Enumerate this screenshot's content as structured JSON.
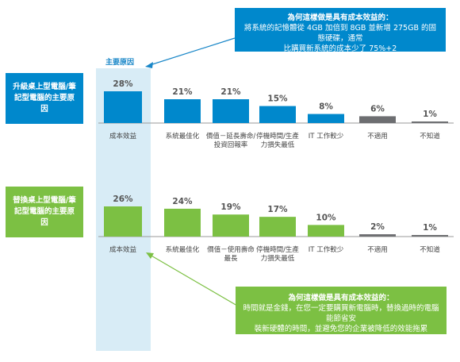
{
  "callout_top": {
    "title": "為何這樣做是具有成本效益的：",
    "line1": "將系統的記憶體從 4GB 加倍到 8GB 並新增 275GB 的固態硬碟，通常",
    "line2": "比購買新系統的成本少了 75%+2"
  },
  "callout_bottom": {
    "title": "為何這樣做是具有成本效益的：",
    "line1": "時間就是金錢，在您一定要購買新電腦時，替換過時的電腦能節省安",
    "line2": "裝新硬體的時間，並避免您的企業被降低的效能拖累"
  },
  "main_reason_label": "主要原因",
  "side_upgrade": "升級桌上型電腦/筆記型電腦的主要原因",
  "side_replace": "替換桌上型電腦/筆記型電腦的主要原因",
  "colors": {
    "blue": "#0088cc",
    "green": "#7cc043",
    "gray": "#6d6e71",
    "highlight": "#d8ecf6"
  },
  "chart_data": [
    {
      "type": "bar",
      "categories": [
        "成本效益",
        "系統最佳化",
        "價值－延長壽命/投資回報率",
        "停機時間/生產力損失最低",
        "IT 工作較少",
        "不適用",
        "不知道"
      ],
      "category_lines": [
        [
          "成本效益"
        ],
        [
          "系統最佳化"
        ],
        [
          "價值－延長壽命/",
          "投資回報率"
        ],
        [
          "停機時間/生產",
          "力損失最低"
        ],
        [
          "IT 工作較少"
        ],
        [
          "不適用"
        ],
        [
          "不知道"
        ]
      ],
      "values": [
        28,
        21,
        21,
        15,
        8,
        6,
        1
      ],
      "value_labels": [
        "28%",
        "21%",
        "21%",
        "15%",
        "8%",
        "6%",
        "1%"
      ],
      "bar_colors": [
        "#0088cc",
        "#0088cc",
        "#0088cc",
        "#0088cc",
        "#0088cc",
        "#6d6e71",
        "#6d6e71"
      ],
      "ylim": [
        0,
        28
      ]
    },
    {
      "type": "bar",
      "categories": [
        "成本效益",
        "系統最佳化",
        "價值－使用壽命最長",
        "停機時間/生產力損失最低",
        "IT 工作較少",
        "不適用",
        "不知道"
      ],
      "category_lines": [
        [
          "成本效益"
        ],
        [
          "系統最佳化"
        ],
        [
          "價值－使用壽命",
          "最長"
        ],
        [
          "停機時間/生產",
          "力損失最低"
        ],
        [
          "IT 工作較少"
        ],
        [
          "不適用"
        ],
        [
          "不知道"
        ]
      ],
      "values": [
        26,
        24,
        19,
        17,
        10,
        2,
        1
      ],
      "value_labels": [
        "26%",
        "24%",
        "19%",
        "17%",
        "10%",
        "2%",
        "1%"
      ],
      "bar_colors": [
        "#7cc043",
        "#7cc043",
        "#7cc043",
        "#7cc043",
        "#7cc043",
        "#6d6e71",
        "#6d6e71"
      ],
      "ylim": [
        0,
        26
      ]
    }
  ]
}
